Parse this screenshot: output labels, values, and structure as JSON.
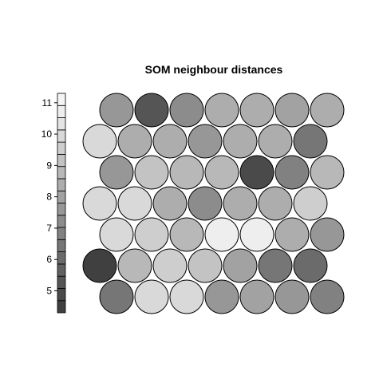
{
  "chart_data": {
    "type": "heatmap",
    "title": "SOM neighbour distances",
    "grid": {
      "shape": "hexagonal",
      "columns": 7,
      "rows": 7
    },
    "scale_ticks": [
      5,
      6,
      7,
      8,
      9,
      10,
      11
    ],
    "scale_range": [
      4.3,
      11.3
    ],
    "scale_colors": [
      "#404040",
      "#4a4a4a",
      "#555555",
      "#606060",
      "#6b6b6b",
      "#767676",
      "#818181",
      "#8c8c8c",
      "#979797",
      "#a2a2a2",
      "#adadad",
      "#b8b8b8",
      "#c3c3c3",
      "#cecece",
      "#d9d9d9",
      "#e4e4e4",
      "#eeeeee",
      "#f4f4f4"
    ],
    "rows": [
      {
        "row": 1,
        "values": [
          7.5,
          5.4,
          7.2,
          8.3,
          8.3,
          8.0,
          8.4
        ]
      },
      {
        "row": 2,
        "values": [
          10.0,
          8.3,
          8.4,
          7.6,
          8.2,
          8.5,
          6.5
        ]
      },
      {
        "row": 3,
        "values": [
          7.6,
          9.0,
          8.8,
          8.6,
          5.0,
          6.8,
          8.8
        ]
      },
      {
        "row": 4,
        "values": [
          10.0,
          10.0,
          8.5,
          7.4,
          8.2,
          8.3,
          9.6
        ]
      },
      {
        "row": 5,
        "values": [
          10.0,
          9.5,
          8.7,
          10.6,
          10.6,
          8.3,
          7.6
        ]
      },
      {
        "row": 6,
        "values": [
          4.6,
          8.9,
          9.5,
          9.3,
          7.9,
          6.5,
          6.2
        ]
      },
      {
        "row": 7,
        "values": [
          6.5,
          9.9,
          9.8,
          7.8,
          7.9,
          7.5,
          6.8
        ]
      }
    ]
  }
}
